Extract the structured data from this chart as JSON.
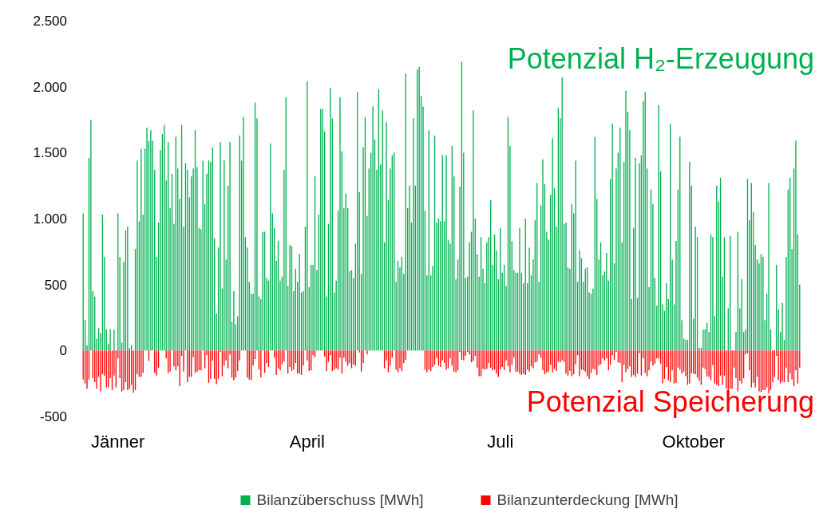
{
  "chart_data": {
    "type": "bar",
    "categories": [
      null,
      null,
      null,
      null,
      null,
      null,
      null,
      null,
      null,
      null,
      null,
      null,
      null,
      null,
      null,
      null,
      null,
      null,
      "Jänner",
      null,
      null,
      null,
      null,
      null,
      null,
      null,
      null,
      null,
      null,
      null,
      null,
      null,
      null,
      null,
      null,
      null,
      null,
      null,
      null,
      null,
      null,
      null,
      null,
      null,
      null,
      null,
      null,
      null,
      null,
      null,
      null,
      null,
      null,
      null,
      null,
      null,
      null,
      null,
      null,
      null,
      null,
      null,
      null,
      null,
      null,
      null,
      null,
      null,
      null,
      null,
      null,
      null,
      null,
      null,
      null,
      null,
      null,
      null,
      null,
      null,
      null,
      null,
      null,
      null,
      null,
      null,
      null,
      null,
      null,
      null,
      null,
      null,
      null,
      null,
      null,
      null,
      null,
      null,
      null,
      null,
      null,
      null,
      null,
      null,
      null,
      null,
      null,
      null,
      null,
      null,
      null,
      null,
      null,
      null,
      null,
      null,
      "April",
      null,
      null,
      null,
      null,
      null,
      null,
      null,
      null,
      null,
      null,
      null,
      null,
      null,
      null,
      null,
      null,
      null,
      null,
      null,
      null,
      null,
      null,
      null,
      null,
      null,
      null,
      null,
      null,
      null,
      null,
      null,
      null,
      null,
      null,
      null,
      null,
      null,
      null,
      null,
      null,
      null,
      null,
      null,
      null,
      null,
      null,
      null,
      null,
      null,
      null,
      null,
      null,
      null,
      null,
      null,
      null,
      null,
      null,
      null,
      null,
      null,
      null,
      null,
      null,
      null,
      null,
      null,
      null,
      null,
      null,
      null,
      null,
      null,
      null,
      null,
      null,
      null,
      null,
      null,
      null,
      null,
      null,
      null,
      null,
      null,
      null,
      null,
      null,
      null,
      null,
      null,
      null,
      null,
      null,
      null,
      null,
      null,
      null,
      null,
      "Juli",
      null,
      null,
      null,
      null,
      null,
      null,
      null,
      null,
      null,
      null,
      null,
      null,
      null,
      null,
      null,
      null,
      null,
      null,
      null,
      null,
      null,
      null,
      null,
      null,
      null,
      null,
      null,
      null,
      null,
      null,
      null,
      null,
      null,
      null,
      null,
      null,
      null,
      null,
      null,
      null,
      null,
      null,
      null,
      null,
      null,
      null,
      null,
      null,
      null,
      null,
      null,
      null,
      null,
      null,
      null,
      null,
      null,
      null,
      null,
      null,
      null,
      null,
      null,
      null,
      null,
      null,
      null,
      null,
      null,
      null,
      null,
      null,
      null,
      null,
      null,
      null,
      null,
      null,
      null,
      null,
      null,
      null,
      null,
      null,
      null,
      null,
      null,
      null,
      null,
      null,
      null,
      null,
      null,
      null,
      null,
      null,
      null,
      null,
      null,
      "Oktober",
      null,
      null,
      null,
      null,
      null,
      null,
      null,
      null,
      null,
      null,
      null,
      null,
      null,
      null,
      null,
      null,
      null,
      null,
      null,
      null,
      null,
      null,
      null,
      null,
      null,
      null,
      null,
      null,
      null,
      null,
      null,
      null,
      null,
      null,
      null,
      null,
      null,
      null,
      null,
      null,
      null,
      null,
      null,
      null,
      null,
      null,
      null,
      null,
      null,
      null,
      null,
      null,
      null,
      null,
      null
    ],
    "series": [
      {
        "name": "Bilanzüberschuss [MWh]",
        "color": "#00b050",
        "values": [
          1040,
          230,
          40,
          1460,
          1750,
          450,
          410,
          90,
          170,
          130,
          1030,
          710,
          160,
          50,
          160,
          0,
          160,
          0,
          1040,
          710,
          60,
          670,
          910,
          940,
          20,
          40,
          0,
          770,
          1440,
          980,
          1530,
          1030,
          1530,
          1690,
          1590,
          1670,
          1590,
          1370,
          710,
          970,
          1520,
          1640,
          1710,
          1290,
          1580,
          1080,
          1340,
          960,
          1620,
          1380,
          1150,
          1710,
          940,
          1420,
          1370,
          1160,
          1320,
          1380,
          1670,
          1390,
          930,
          920,
          1440,
          1110,
          1340,
          1440,
          1430,
          1540,
          850,
          280,
          780,
          1580,
          470,
          1440,
          690,
          1250,
          1580,
          220,
          450,
          200,
          260,
          1630,
          1440,
          1770,
          860,
          780,
          520,
          430,
          430,
          1880,
          1760,
          410,
          390,
          900,
          900,
          550,
          530,
          1570,
          1040,
          930,
          680,
          830,
          530,
          560,
          1370,
          1920,
          490,
          800,
          790,
          450,
          620,
          520,
          730,
          440,
          450,
          940,
          2040,
          480,
          650,
          650,
          1320,
          610,
          1030,
          1830,
          1830,
          1660,
          410,
          960,
          1990,
          1760,
          440,
          530,
          1060,
          1920,
          1510,
          1080,
          1190,
          1080,
          600,
          610,
          550,
          810,
          1960,
          1200,
          580,
          1540,
          1770,
          1020,
          1380,
          1500,
          1850,
          1600,
          1370,
          1980,
          1410,
          1820,
          820,
          1730,
          1140,
          1380,
          1480,
          1500,
          520,
          680,
          630,
          710,
          580,
          2100,
          1080,
          1250,
          970,
          1760,
          1250,
          2130,
          2150,
          1930,
          1850,
          1060,
          570,
          1670,
          570,
          640,
          1630,
          970,
          1000,
          980,
          1480,
          980,
          1480,
          840,
          810,
          1550,
          1320,
          540,
          690,
          1240,
          2190,
          1500,
          550,
          560,
          820,
          900,
          1820,
          1000,
          730,
          560,
          860,
          620,
          510,
          820,
          860,
          1140,
          650,
          880,
          760,
          540,
          930,
          590,
          650,
          490,
          1770,
          1550,
          830,
          610,
          590,
          590,
          930,
          590,
          510,
          1000,
          510,
          780,
          570,
          690,
          990,
          1270,
          520,
          1100,
          1450,
          1260,
          900,
          840,
          1180,
          1610,
          1230,
          940,
          1840,
          1760,
          2070,
          960,
          970,
          630,
          620,
          1110,
          1040,
          1440,
          520,
          760,
          700,
          520,
          620,
          630,
          440,
          430,
          470,
          1620,
          1150,
          690,
          820,
          570,
          600,
          740,
          530,
          1300,
          1720,
          660,
          1380,
          1500,
          1690,
          820,
          1430,
          1970,
          1810,
          1670,
          390,
          930,
          1460,
          400,
          1420,
          1480,
          1890,
          1960,
          1380,
          480,
          1220,
          1110,
          550,
          340,
          1860,
          1360,
          350,
          300,
          510,
          390,
          1720,
          690,
          350,
          830,
          1220,
          1620,
          230,
          90,
          80,
          80,
          1430,
          1250,
          240,
          940,
          860,
          20,
          20,
          160,
          160,
          210,
          140,
          880,
          860,
          260,
          1250,
          1130,
          1310,
          560,
          860,
          0,
          320,
          870,
          0,
          0,
          140,
          900,
          320,
          540,
          140,
          160,
          1300,
          990,
          1270,
          1050,
          800,
          690,
          660,
          730,
          710,
          230,
          430,
          1270,
          160,
          0,
          0,
          650,
          310,
          140,
          360,
          80,
          710,
          1220,
          1310,
          770,
          1380,
          1590,
          880,
          500
        ]
      },
      {
        "name": "Bilanzunterdeckung [MWh]",
        "color": "#ff0000",
        "values": [
          -220,
          -250,
          -290,
          -220,
          0,
          -210,
          -240,
          -290,
          -200,
          -310,
          -180,
          -190,
          -280,
          -280,
          -210,
          -300,
          -190,
          -280,
          -60,
          -210,
          -310,
          -300,
          -240,
          -300,
          -290,
          -260,
          -320,
          -300,
          -180,
          -200,
          -200,
          -170,
          null,
          0,
          -80,
          0,
          0,
          -170,
          -190,
          -130,
          0,
          0,
          0,
          -60,
          -170,
          -160,
          0,
          -120,
          -150,
          -120,
          -270,
          -40,
          -160,
          0,
          -240,
          -200,
          -200,
          -50,
          -170,
          -160,
          -150,
          -150,
          0,
          -135,
          -35,
          -245,
          -215,
          -75,
          -215,
          -255,
          -215,
          -10,
          -195,
          -115,
          -75,
          -135,
          -30,
          -205,
          -225,
          -205,
          -155,
          -75,
          0,
          0,
          0,
          -205,
          -220,
          -225,
          -115,
          -65,
          0,
          -145,
          -205,
          0,
          -170,
          -95,
          -125,
          0,
          0,
          -55,
          -185,
          -135,
          -150,
          -105,
          -85,
          0,
          -175,
          -125,
          -155,
          -145,
          -95,
          -175,
          -175,
          -185,
          -115,
          0,
          -75,
          -155,
          -150,
          -35,
          -50,
          0,
          0,
          0,
          0,
          -45,
          -155,
          -85,
          -35,
          -155,
          -145,
          -135,
          -145,
          -55,
          -175,
          -55,
          -85,
          -115,
          -95,
          -135,
          -105,
          -115,
          0,
          -15,
          -160,
          -95,
          0,
          -30,
          0,
          0,
          0,
          0,
          0,
          0,
          0,
          0,
          -135,
          -75,
          -165,
          -115,
          -55,
          0,
          -145,
          -165,
          -135,
          -155,
          -95,
          -70,
          0,
          0,
          0,
          0,
          0,
          0,
          0,
          0,
          0,
          -145,
          -165,
          -145,
          -155,
          -125,
          -110,
          -55,
          -115,
          -125,
          -75,
          -95,
          -145,
          -135,
          -60,
          -115,
          -160,
          -165,
          -150,
          -10,
          -70,
          -75,
          -40,
          -10,
          -30,
          -90,
          -80,
          -40,
          -130,
          -195,
          -195,
          -140,
          -145,
          -140,
          -95,
          -130,
          -150,
          -145,
          -175,
          -200,
          -145,
          -125,
          -150,
          -75,
          -120,
          -165,
          -110,
          -55,
          -160,
          -160,
          -175,
          -185,
          -175,
          -185,
          -145,
          -160,
          -120,
          -135,
          -90,
          -85,
          -30,
          -55,
          -150,
          -180,
          -170,
          -160,
          -110,
          -165,
          -140,
          -155,
          -85,
          -90,
          -75,
          -85,
          -175,
          -190,
          -155,
          -195,
          -180,
          -105,
          -35,
          -195,
          -145,
          -150,
          -160,
          -195,
          -215,
          -170,
          -140,
          -145,
          -185,
          -115,
          -105,
          -60,
          -75,
          -60,
          -150,
          -110,
          -35,
          -70,
          -10,
          -90,
          -95,
          -240,
          -110,
          -165,
          -140,
          -120,
          -200,
          -185,
          -200,
          -175,
          -20,
          -190,
          -60,
          -170,
          -195,
          -150,
          -85,
          -115,
          -100,
          -60,
          -60,
          -100,
          -250,
          -215,
          -125,
          -225,
          -240,
          -150,
          -250,
          -245,
          -130,
          -145,
          -175,
          -160,
          -195,
          -260,
          -250,
          -175,
          -175,
          -180,
          -205,
          -230,
          -260,
          -130,
          -140,
          -195,
          -200,
          -225,
          -110,
          -250,
          -260,
          -270,
          -190,
          -260,
          -190,
          -290,
          -300,
          -290,
          -290,
          -130,
          -210,
          -310,
          -230,
          -250,
          -210,
          -30,
          -20,
          -150,
          -280,
          -245,
          -280,
          -200,
          -310,
          -315,
          -300,
          -300,
          -280,
          -325,
          -300,
          -240,
          -200,
          -40,
          -225,
          -250,
          -235,
          -240,
          -130,
          -240,
          -175,
          -220,
          -270,
          -150,
          -250,
          -130
        ]
      }
    ],
    "ylim": [
      -500,
      2500
    ],
    "yticks": [
      {
        "value": -500,
        "label": "-500"
      },
      0,
      500,
      {
        "value": 1000,
        "label": "1.000"
      },
      {
        "value": 1500,
        "label": "1.500"
      },
      {
        "value": 2000,
        "label": "2.000"
      },
      {
        "value": 2500,
        "label": "2.500"
      }
    ],
    "legend": "bottom",
    "annotations": [
      "Potenzial H₂-Erzeugung",
      "Potenzial Speicherung"
    ]
  }
}
